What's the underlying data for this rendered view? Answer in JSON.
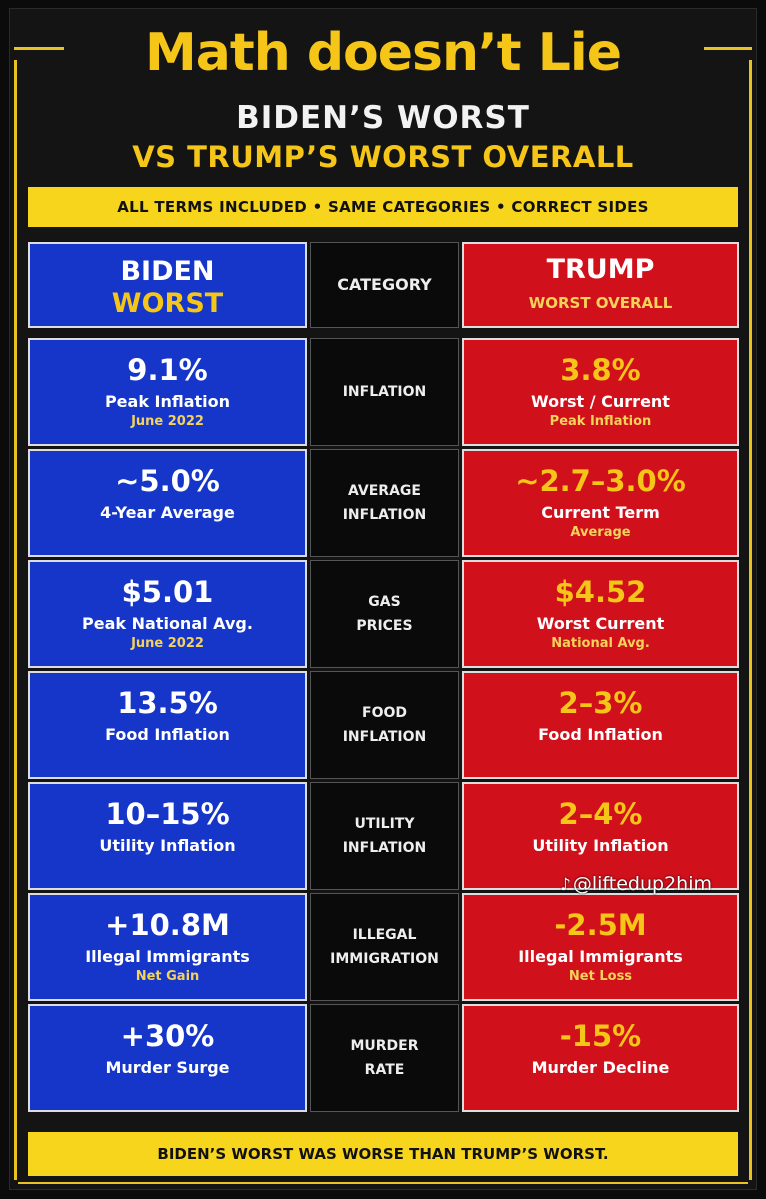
{
  "title": "Math doesn’t Lie",
  "subtitle_line1": "BIDEN’S WORST",
  "subtitle_line2": "VS TRUMP’S WORST OVERALL",
  "banner": "ALL TERMS INCLUDED • SAME CATEGORIES • CORRECT SIDES",
  "header": {
    "biden_line1": "BIDEN",
    "biden_line2": "WORST",
    "category": "CATEGORY",
    "trump_line1": "TRUMP",
    "trump_line2": "WORST OVERALL"
  },
  "rows": [
    {
      "biden_value": "9.1%",
      "biden_label": "Peak Inflation",
      "biden_note": "June 2022",
      "cat1": "INFLATION",
      "cat2": "",
      "trump_value": "3.8%",
      "trump_label": "Worst / Current",
      "trump_note": "Peak Inflation"
    },
    {
      "biden_value": "~5.0%",
      "biden_label": "4-Year Average",
      "biden_note": "",
      "cat1": "AVERAGE",
      "cat2": "INFLATION",
      "trump_value": "~2.7–3.0%",
      "trump_label": "Current Term",
      "trump_note": "Average"
    },
    {
      "biden_value": "$5.01",
      "biden_label": "Peak National Avg.",
      "biden_note": "June 2022",
      "cat1": "GAS",
      "cat2": "PRICES",
      "trump_value": "$4.52",
      "trump_label": "Worst Current",
      "trump_note": "National Avg."
    },
    {
      "biden_value": "13.5%",
      "biden_label": "Food Inflation",
      "biden_note": "",
      "cat1": "FOOD",
      "cat2": "INFLATION",
      "trump_value": "2–3%",
      "trump_label": "Food Inflation",
      "trump_note": ""
    },
    {
      "biden_value": "10–15%",
      "biden_label": "Utility Inflation",
      "biden_note": "",
      "cat1": "UTILITY",
      "cat2": "INFLATION",
      "trump_value": "2–4%",
      "trump_label": "Utility Inflation",
      "trump_note": ""
    },
    {
      "biden_value": "+10.8M",
      "biden_label": "Illegal Immigrants",
      "biden_note": "Net Gain",
      "cat1": "ILLEGAL",
      "cat2": "IMMIGRATION",
      "trump_value": "-2.5M",
      "trump_label": "Illegal Immigrants",
      "trump_note": "Net Loss"
    },
    {
      "biden_value": "+30%",
      "biden_label": "Murder Surge",
      "biden_note": "",
      "cat1": "MURDER",
      "cat2": "RATE",
      "trump_value": "-15%",
      "trump_label": "Murder Decline",
      "trump_note": ""
    }
  ],
  "footer": "BIDEN’S WORST WAS WORSE THAN TRUMP’S WORST.",
  "watermark": "@liftedup2him",
  "watermark_icon": "tiktok-icon",
  "colors": {
    "biden_blue": "#1536c8",
    "trump_red": "#d0101b",
    "accent_yellow": "#f5c518"
  }
}
